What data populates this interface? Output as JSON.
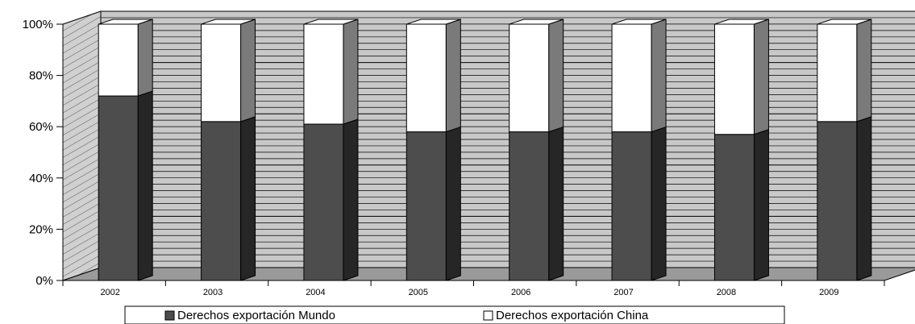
{
  "chart_data": {
    "type": "bar",
    "stacked": true,
    "percent": true,
    "three_d": true,
    "categories": [
      "2002",
      "2003",
      "2004",
      "2005",
      "2006",
      "2007",
      "2008",
      "2009"
    ],
    "series": [
      {
        "name": "Derechos exportación Mundo",
        "values": [
          72,
          62,
          61,
          58,
          58,
          58,
          57,
          62
        ],
        "color": "#4d4d4d"
      },
      {
        "name": "Derechos exportación China",
        "values": [
          28,
          38,
          39,
          42,
          42,
          42,
          43,
          38
        ],
        "color": "#ffffff"
      }
    ],
    "yticks": [
      "0%",
      "20%",
      "40%",
      "60%",
      "80%",
      "100%"
    ],
    "ylim": [
      0,
      100
    ],
    "grid": true,
    "legend_position": "bottom"
  }
}
